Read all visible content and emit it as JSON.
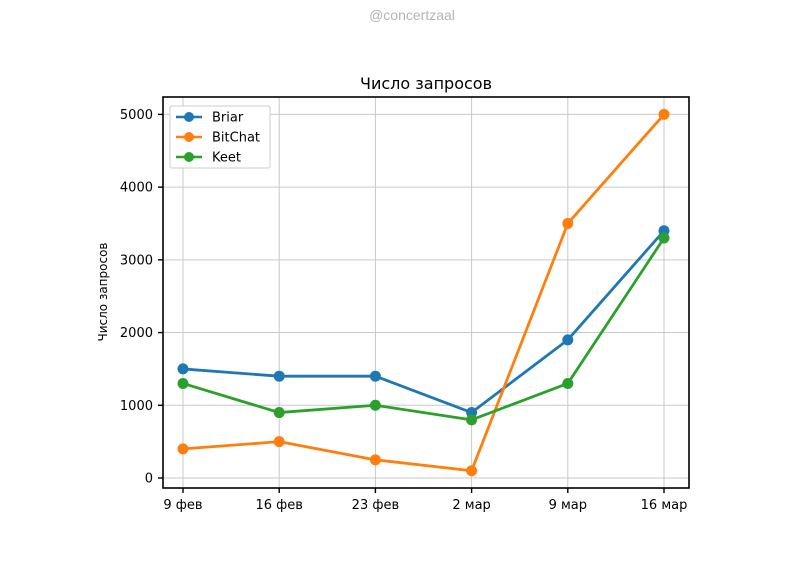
{
  "watermark": "@concertzaal",
  "chart_data": {
    "type": "line",
    "title": "Число запросов",
    "xlabel": "",
    "ylabel": "Число запросов",
    "categories": [
      "9 фев",
      "16 фев",
      "23 фев",
      "2 мар",
      "9 мар",
      "16 мар"
    ],
    "yticks": [
      0,
      1000,
      2000,
      3000,
      4000,
      5000
    ],
    "ylim": [
      0,
      5000
    ],
    "grid": true,
    "grid_color": "#c9c9c9",
    "legend_position": "upper left",
    "series": [
      {
        "name": "Briar",
        "color": "#1f77b4",
        "values": [
          1500,
          1400,
          1400,
          900,
          1900,
          3400
        ]
      },
      {
        "name": "BitChat",
        "color": "#ff7f0e",
        "values": [
          400,
          500,
          250,
          100,
          3500,
          5000
        ]
      },
      {
        "name": "Keet",
        "color": "#2ca02c",
        "values": [
          1300,
          900,
          1000,
          800,
          1300,
          3300
        ]
      }
    ]
  }
}
